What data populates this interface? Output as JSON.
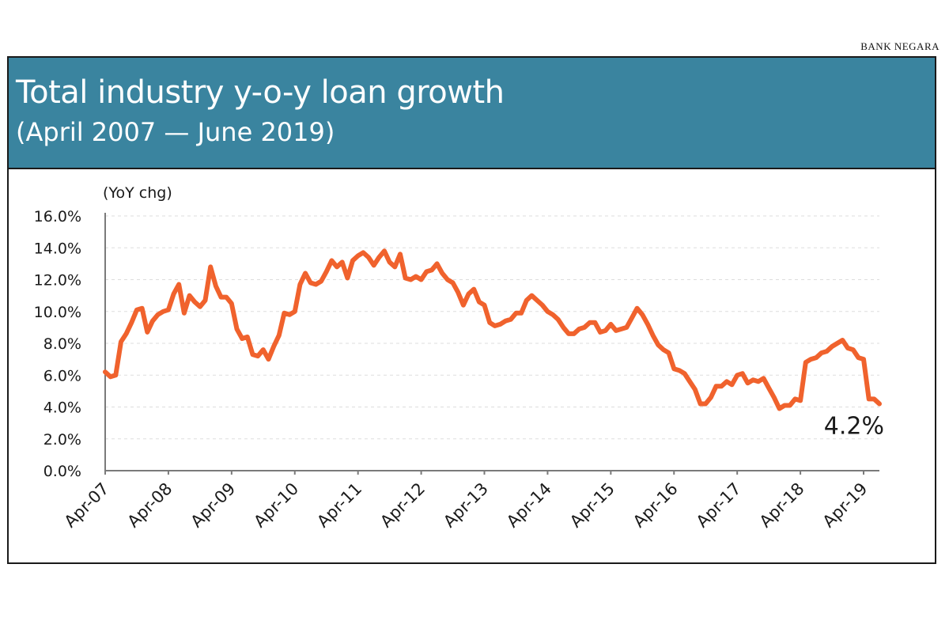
{
  "source_label": "BANK NEGARA",
  "colors": {
    "header_bg": "#3a849f",
    "line": "#f0622d",
    "axis": "#7a7a7a",
    "grid": "#dddddd"
  },
  "chart_data": {
    "type": "line",
    "title": "Total industry y-o-y loan growth",
    "subtitle": "(April 2007 — June 2019)",
    "ylabel": "(YoY chg)",
    "ylim": [
      0,
      16
    ],
    "yticks": [
      "16.0%",
      "14.0%",
      "12.0%",
      "10.0%",
      "8.0%",
      "6.0%",
      "4.0%",
      "2.0%",
      "0.0%"
    ],
    "ytick_values": [
      16,
      14,
      12,
      10,
      8,
      6,
      4,
      2,
      0
    ],
    "xticks": [
      "Apr-07",
      "Apr-08",
      "Apr-09",
      "Apr-10",
      "Apr-11",
      "Apr-12",
      "Apr-13",
      "Apr-14",
      "Apr-15",
      "Apr-16",
      "Apr-17",
      "Apr-18",
      "Apr-19"
    ],
    "grid": "horizontal dashed",
    "annotation": "4.2%",
    "series": [
      {
        "values": [
          6.2,
          5.9,
          6.0,
          8.1,
          8.6,
          9.3,
          10.1,
          10.2,
          8.7,
          9.4,
          9.8,
          10.0,
          10.1,
          11.1,
          11.7,
          9.9,
          11.0,
          10.6,
          10.3,
          10.7,
          12.8,
          11.6,
          10.9,
          10.9,
          10.5,
          8.9,
          8.3,
          8.4,
          7.3,
          7.2,
          7.6,
          7.0,
          7.8,
          8.5,
          9.9,
          9.8,
          10.0,
          11.7,
          12.4,
          11.8,
          11.7,
          11.9,
          12.5,
          13.2,
          12.8,
          13.1,
          12.1,
          13.2,
          13.5,
          13.7,
          13.4,
          12.9,
          13.4,
          13.8,
          13.1,
          12.8,
          13.6,
          12.1,
          12.0,
          12.2,
          12.0,
          12.5,
          12.6,
          13.0,
          12.4,
          12.0,
          11.8,
          11.2,
          10.4,
          11.1,
          11.4,
          10.6,
          10.4,
          9.3,
          9.1,
          9.2,
          9.4,
          9.5,
          9.9,
          9.9,
          10.7,
          11.0,
          10.7,
          10.4,
          10.0,
          9.8,
          9.5,
          9.0,
          8.6,
          8.6,
          8.9,
          9.0,
          9.3,
          9.3,
          8.7,
          8.8,
          9.2,
          8.8,
          8.9,
          9.0,
          9.6,
          10.2,
          9.8,
          9.2,
          8.5,
          7.9,
          7.6,
          7.4,
          6.4,
          6.3,
          6.1,
          5.6,
          5.1,
          4.2,
          4.2,
          4.6,
          5.3,
          5.3,
          5.6,
          5.4,
          6.0,
          6.1,
          5.5,
          5.7,
          5.6,
          5.8,
          5.2,
          4.6,
          3.9,
          4.1,
          4.1,
          4.5,
          4.4,
          6.8,
          7.0,
          7.1,
          7.4,
          7.5,
          7.8,
          8.0,
          8.2,
          7.7,
          7.6,
          7.1,
          7.0,
          4.5,
          4.5,
          4.2
        ]
      }
    ]
  }
}
